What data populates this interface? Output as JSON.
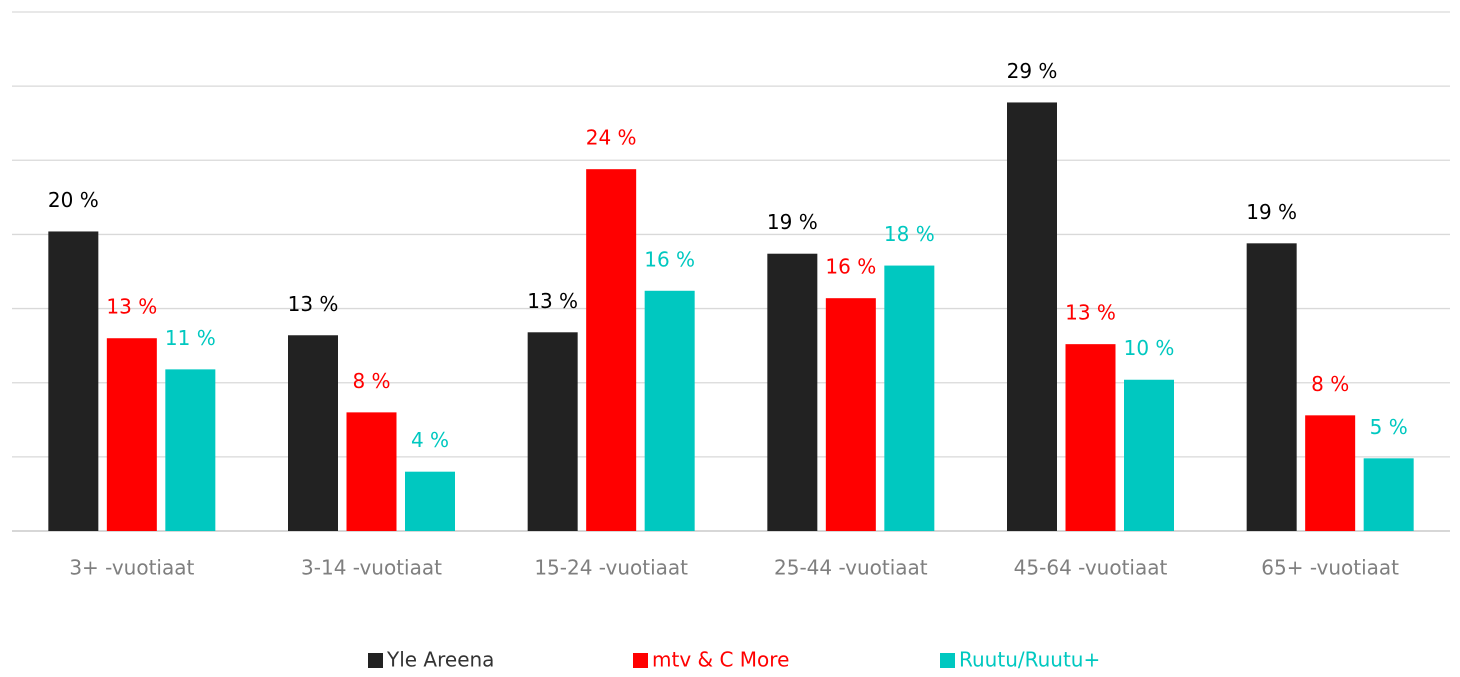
{
  "chart_data": {
    "type": "bar",
    "categories": [
      "3+ -vuotiaat",
      "3-14 -vuotiaat",
      "15-24 -vuotiaat",
      "25-44 -vuotiaat",
      "45-64 -vuotiaat",
      "65+ -vuotiaat"
    ],
    "series": [
      {
        "name": "Yle Areena",
        "color": "#222222",
        "values": [
          20.2,
          13.2,
          13.4,
          18.7,
          28.9,
          19.4
        ],
        "value_labels": [
          "20 %",
          "13 %",
          "13 %",
          "19 %",
          "29 %",
          "19 %"
        ]
      },
      {
        "name": "mtv & C More",
        "color": "#ff0000",
        "values": [
          13.0,
          8.0,
          24.4,
          15.7,
          12.6,
          7.8
        ],
        "value_labels": [
          "13 %",
          "8 %",
          "24 %",
          "16 %",
          "13 %",
          "8 %"
        ]
      },
      {
        "name": "Ruutu/Ruutu+",
        "color": "#00c8c0",
        "values": [
          10.9,
          4.0,
          16.2,
          17.9,
          10.2,
          4.9
        ],
        "value_labels": [
          "11 %",
          "4 %",
          "16 %",
          "18 %",
          "10 %",
          "5 %"
        ]
      }
    ],
    "ylim": [
      0,
      35
    ],
    "yticks": [
      0,
      5,
      10,
      15,
      20,
      25,
      30,
      35
    ],
    "grid": true,
    "legend": "bottom"
  }
}
